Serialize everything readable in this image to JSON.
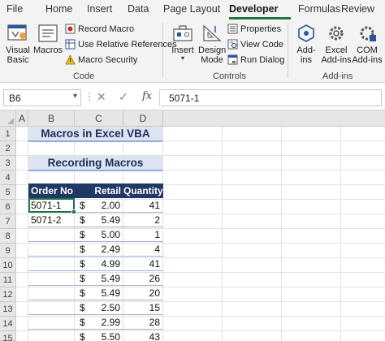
{
  "ribbon": {
    "tabs": [
      "File",
      "Home",
      "Insert",
      "Data",
      "Page Layout",
      "Developer",
      "Formulas",
      "Review"
    ],
    "active_tab": "Developer",
    "code_group": {
      "label": "Code",
      "visual_basic_line1": "Visual",
      "visual_basic_line2": "Basic",
      "macros": "Macros",
      "record_macro": "Record Macro",
      "use_relative_references": "Use Relative References",
      "macro_security": "Macro Security"
    },
    "controls_group": {
      "label": "Controls",
      "insert": "Insert",
      "design_mode_line1": "Design",
      "design_mode_line2": "Mode",
      "properties": "Properties",
      "view_code": "View Code",
      "run_dialog": "Run Dialog"
    },
    "addins_group": {
      "label": "Add-ins",
      "addins_line1": "Add-",
      "addins_line2": "ins",
      "excel_addins_line1": "Excel",
      "excel_addins_line2": "Add-ins",
      "com_addins_line1": "COM",
      "com_addins_line2": "Add-ins"
    },
    "accent_color": "#217346"
  },
  "formula_bar": {
    "name_box": "B6",
    "formula": "5071-1",
    "cancel_symbol": "✕",
    "enter_symbol": "✓",
    "fx_label": "fx"
  },
  "sheet": {
    "columns": [
      "A",
      "B",
      "C",
      "D"
    ],
    "rows": [
      "1",
      "2",
      "3",
      "4",
      "5",
      "6",
      "7",
      "8",
      "9",
      "10",
      "11",
      "12",
      "13",
      "14",
      "15"
    ],
    "title": "Macros in Excel VBA",
    "subtitle": "Recording Macros",
    "banner_color": "#dce3f1",
    "header_color": "#203864",
    "table": {
      "headers": [
        "Order No",
        "Retail Price",
        "Quantity"
      ],
      "currency_symbol": "$",
      "rows": [
        {
          "order": "5071-1",
          "price": "2.00",
          "qty": "41"
        },
        {
          "order": "5071-2",
          "price": "5.49",
          "qty": "2"
        },
        {
          "order": "",
          "price": "5.00",
          "qty": "1"
        },
        {
          "order": "",
          "price": "2.49",
          "qty": "4"
        },
        {
          "order": "",
          "price": "4.99",
          "qty": "41"
        },
        {
          "order": "",
          "price": "5.49",
          "qty": "26"
        },
        {
          "order": "",
          "price": "5.49",
          "qty": "20"
        },
        {
          "order": "",
          "price": "2.50",
          "qty": "15"
        },
        {
          "order": "",
          "price": "2.99",
          "qty": "28"
        },
        {
          "order": "",
          "price": "5.50",
          "qty": "43"
        }
      ]
    },
    "selected_cell": "B6"
  }
}
